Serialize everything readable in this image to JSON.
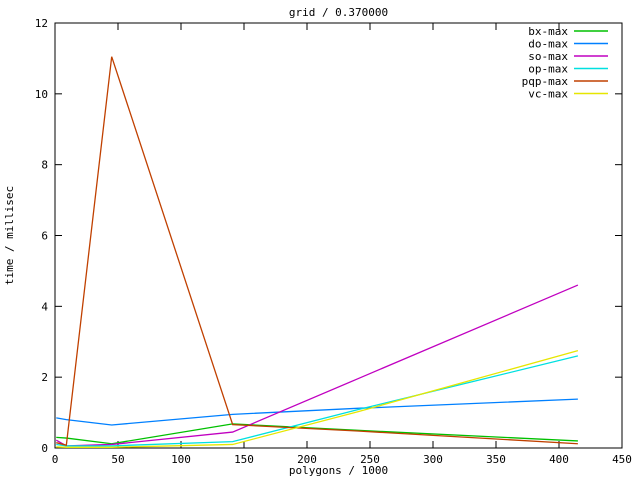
{
  "figure": {
    "title": "grid / 0.370000",
    "xlabel": "polygons / 1000",
    "ylabel": "time / millisec",
    "background": "#ffffff",
    "border_color": "#000000"
  },
  "chart_data": {
    "type": "line",
    "title": "grid / 0.370000",
    "xlabel": "polygons / 1000",
    "ylabel": "time / millisec",
    "xlim": [
      0,
      450
    ],
    "ylim": [
      0,
      12
    ],
    "xticks": [
      0,
      50,
      100,
      150,
      200,
      250,
      300,
      350,
      400,
      450
    ],
    "yticks": [
      0,
      2,
      4,
      6,
      8,
      10,
      12
    ],
    "grid": false,
    "legend_position": "top-right-inside",
    "x": [
      1,
      9,
      45,
      141,
      240,
      415
    ],
    "series": [
      {
        "name": "bx-max",
        "color": "#00c000",
        "values": [
          0.3,
          0.28,
          0.12,
          0.68,
          0.5,
          0.2
        ]
      },
      {
        "name": "do-max",
        "color": "#0080ff",
        "values": [
          0.85,
          0.8,
          0.65,
          0.95,
          1.12,
          1.38
        ]
      },
      {
        "name": "so-max",
        "color": "#c000c0",
        "values": [
          0.22,
          0.06,
          0.1,
          0.45,
          1.95,
          4.6
        ]
      },
      {
        "name": "op-max",
        "color": "#00e0e0",
        "values": [
          0.1,
          0.06,
          0.06,
          0.18,
          1.08,
          2.6
        ]
      },
      {
        "name": "pqp-max",
        "color": "#c04000",
        "values": [
          0.15,
          0.08,
          11.05,
          0.66,
          0.48,
          0.12
        ]
      },
      {
        "name": "vc-max",
        "color": "#e6e600",
        "values": [
          0.03,
          0.02,
          0.02,
          0.1,
          1.02,
          2.75
        ]
      }
    ]
  }
}
